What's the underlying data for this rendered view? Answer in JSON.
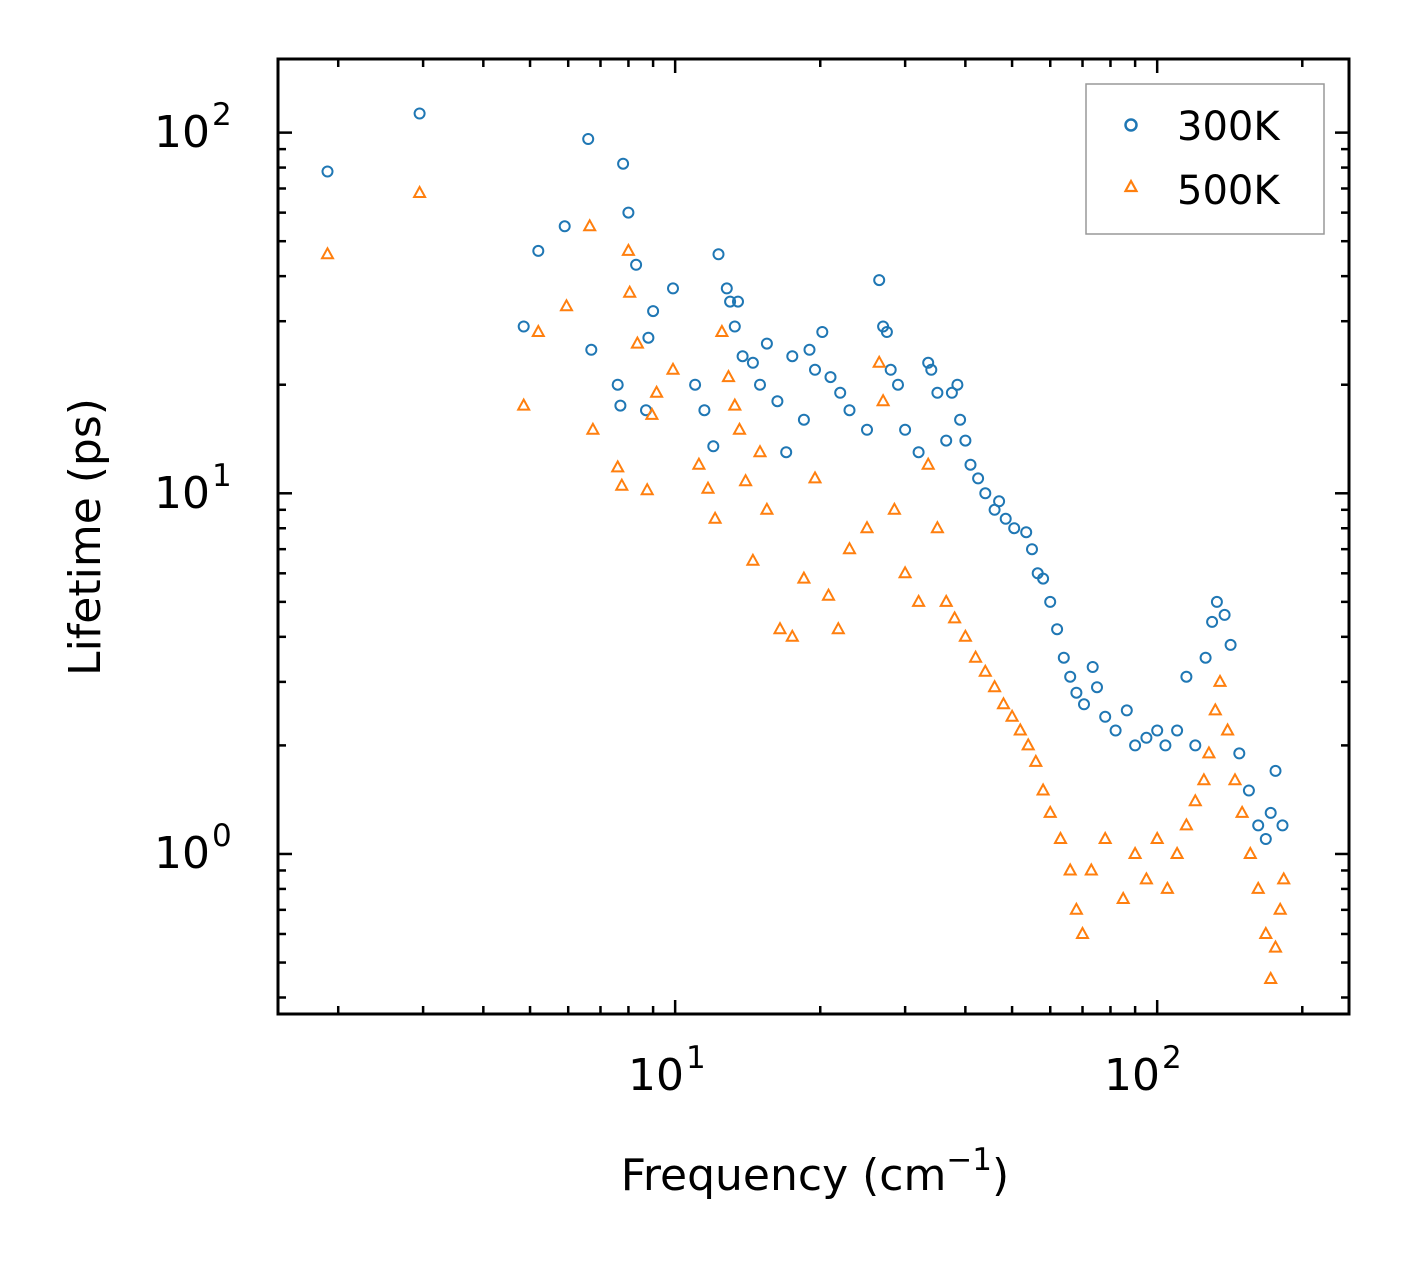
{
  "chart_data": {
    "type": "scatter",
    "xscale": "log",
    "yscale": "log",
    "xlim": [
      1.5,
      250
    ],
    "ylim": [
      0.36,
      160
    ],
    "xlabel": "Frequency (cm",
    "xlabel_sup": "−1",
    "xlabel_end": ")",
    "ylabel": "Lifetime (ps)",
    "x_ticks": [
      {
        "value": 10,
        "base": "10",
        "exp": "1"
      },
      {
        "value": 100,
        "base": "10",
        "exp": "2"
      }
    ],
    "y_ticks": [
      {
        "value": 1,
        "base": "10",
        "exp": "0"
      },
      {
        "value": 10,
        "base": "10",
        "exp": "1"
      },
      {
        "value": 100,
        "base": "10",
        "exp": "2"
      }
    ],
    "legend": {
      "location": "upper right"
    },
    "series": [
      {
        "name": "300K",
        "marker": "circle",
        "color": "#1f77b4",
        "points": [
          [
            1.9,
            78
          ],
          [
            2.95,
            113
          ],
          [
            6.6,
            96
          ],
          [
            7.8,
            82
          ],
          [
            4.85,
            29
          ],
          [
            5.2,
            47
          ],
          [
            5.9,
            55
          ],
          [
            6.7,
            25
          ],
          [
            7.6,
            20
          ],
          [
            7.7,
            17.5
          ],
          [
            8.0,
            60
          ],
          [
            8.3,
            43
          ],
          [
            8.8,
            27
          ],
          [
            9.0,
            32
          ],
          [
            8.7,
            17
          ],
          [
            9.9,
            37
          ],
          [
            11.0,
            20
          ],
          [
            11.5,
            17
          ],
          [
            12.0,
            13.5
          ],
          [
            12.3,
            46
          ],
          [
            12.8,
            37
          ],
          [
            13.0,
            34
          ],
          [
            13.3,
            29
          ],
          [
            13.5,
            34
          ],
          [
            13.8,
            24
          ],
          [
            14.5,
            23
          ],
          [
            15.0,
            20
          ],
          [
            15.5,
            26
          ],
          [
            16.3,
            18
          ],
          [
            17.0,
            13
          ],
          [
            17.5,
            24
          ],
          [
            18.5,
            16
          ],
          [
            19.0,
            25
          ],
          [
            19.5,
            22
          ],
          [
            20.2,
            28
          ],
          [
            21.0,
            21
          ],
          [
            22.0,
            19
          ],
          [
            23.0,
            17
          ],
          [
            25.0,
            15
          ],
          [
            26.5,
            39
          ],
          [
            27.0,
            29
          ],
          [
            27.5,
            28
          ],
          [
            28.0,
            22
          ],
          [
            29.0,
            20
          ],
          [
            30.0,
            15
          ],
          [
            32.0,
            13
          ],
          [
            33.5,
            23
          ],
          [
            34.0,
            22
          ],
          [
            35.0,
            19
          ],
          [
            36.5,
            14
          ],
          [
            37.5,
            19
          ],
          [
            38.5,
            20
          ],
          [
            39.0,
            16
          ],
          [
            40.0,
            14
          ],
          [
            41.0,
            12
          ],
          [
            42.5,
            11
          ],
          [
            44.0,
            10
          ],
          [
            46.0,
            9
          ],
          [
            47.0,
            9.5
          ],
          [
            48.5,
            8.5
          ],
          [
            50.5,
            8.0
          ],
          [
            53.5,
            7.8
          ],
          [
            55.0,
            7.0
          ],
          [
            56.5,
            6.0
          ],
          [
            58.0,
            5.8
          ],
          [
            60.0,
            5.0
          ],
          [
            62.0,
            4.2
          ],
          [
            64.0,
            3.5
          ],
          [
            66.0,
            3.1
          ],
          [
            68.0,
            2.8
          ],
          [
            70.5,
            2.6
          ],
          [
            73.5,
            3.3
          ],
          [
            75.0,
            2.9
          ],
          [
            78.0,
            2.4
          ],
          [
            82.0,
            2.2
          ],
          [
            86.5,
            2.5
          ],
          [
            90.0,
            2.0
          ],
          [
            95.0,
            2.1
          ],
          [
            100.0,
            2.2
          ],
          [
            104.0,
            2.0
          ],
          [
            110.0,
            2.2
          ],
          [
            115.0,
            3.1
          ],
          [
            120.0,
            2.0
          ],
          [
            126.0,
            3.5
          ],
          [
            130.0,
            4.4
          ],
          [
            133.0,
            5.0
          ],
          [
            138.0,
            4.6
          ],
          [
            142.0,
            3.8
          ],
          [
            148.0,
            1.9
          ],
          [
            155.0,
            1.5
          ],
          [
            162.0,
            1.2
          ],
          [
            168.0,
            1.1
          ],
          [
            172.0,
            1.3
          ],
          [
            176.0,
            1.7
          ],
          [
            182.0,
            1.2
          ]
        ]
      },
      {
        "name": "500K",
        "marker": "triangle",
        "color": "#ff7f0e",
        "points": [
          [
            1.9,
            46
          ],
          [
            2.95,
            68
          ],
          [
            4.85,
            17.5
          ],
          [
            5.2,
            28
          ],
          [
            5.95,
            33
          ],
          [
            6.65,
            55
          ],
          [
            6.75,
            15
          ],
          [
            7.6,
            11.8
          ],
          [
            7.75,
            10.5
          ],
          [
            8.0,
            47
          ],
          [
            8.05,
            36
          ],
          [
            8.35,
            26
          ],
          [
            8.75,
            10.2
          ],
          [
            8.95,
            16.5
          ],
          [
            9.15,
            19
          ],
          [
            9.9,
            22
          ],
          [
            11.2,
            12
          ],
          [
            11.7,
            10.3
          ],
          [
            12.1,
            8.5
          ],
          [
            12.5,
            28
          ],
          [
            12.9,
            21
          ],
          [
            13.3,
            17.5
          ],
          [
            13.6,
            15
          ],
          [
            14.0,
            10.8
          ],
          [
            14.5,
            6.5
          ],
          [
            15.0,
            13
          ],
          [
            15.5,
            9.0
          ],
          [
            16.5,
            4.2
          ],
          [
            17.5,
            4.0
          ],
          [
            18.5,
            5.8
          ],
          [
            19.5,
            11
          ],
          [
            20.8,
            5.2
          ],
          [
            21.8,
            4.2
          ],
          [
            23.0,
            7.0
          ],
          [
            25.0,
            8.0
          ],
          [
            26.5,
            23
          ],
          [
            27.0,
            18
          ],
          [
            28.5,
            9
          ],
          [
            30.0,
            6
          ],
          [
            32.0,
            5.0
          ],
          [
            33.5,
            12
          ],
          [
            35.0,
            8
          ],
          [
            36.5,
            5.0
          ],
          [
            38.0,
            4.5
          ],
          [
            40.0,
            4.0
          ],
          [
            42.0,
            3.5
          ],
          [
            44.0,
            3.2
          ],
          [
            46.0,
            2.9
          ],
          [
            48.0,
            2.6
          ],
          [
            50.0,
            2.4
          ],
          [
            52.0,
            2.2
          ],
          [
            54.0,
            2.0
          ],
          [
            56.0,
            1.8
          ],
          [
            58.0,
            1.5
          ],
          [
            60.0,
            1.3
          ],
          [
            63.0,
            1.1
          ],
          [
            66.0,
            0.9
          ],
          [
            68.0,
            0.7
          ],
          [
            70.0,
            0.6
          ],
          [
            73.0,
            0.9
          ],
          [
            78.0,
            1.1
          ],
          [
            85.0,
            0.75
          ],
          [
            90.0,
            1.0
          ],
          [
            95.0,
            0.85
          ],
          [
            100.0,
            1.1
          ],
          [
            105.0,
            0.8
          ],
          [
            110.0,
            1.0
          ],
          [
            115.0,
            1.2
          ],
          [
            120.0,
            1.4
          ],
          [
            125.0,
            1.6
          ],
          [
            128.0,
            1.9
          ],
          [
            132.0,
            2.5
          ],
          [
            135.0,
            3.0
          ],
          [
            140.0,
            2.2
          ],
          [
            145.0,
            1.6
          ],
          [
            150.0,
            1.3
          ],
          [
            156.0,
            1.0
          ],
          [
            162.0,
            0.8
          ],
          [
            168.0,
            0.6
          ],
          [
            172.0,
            0.45
          ],
          [
            176.0,
            0.55
          ],
          [
            180.0,
            0.7
          ],
          [
            183.0,
            0.85
          ]
        ]
      }
    ]
  }
}
